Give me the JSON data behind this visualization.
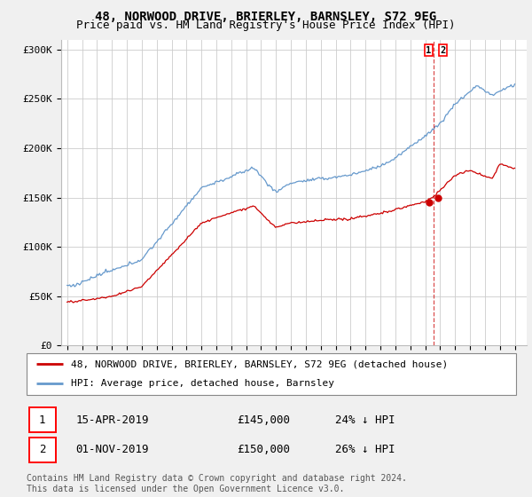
{
  "title": "48, NORWOOD DRIVE, BRIERLEY, BARNSLEY, S72 9EG",
  "subtitle": "Price paid vs. HM Land Registry's House Price Index (HPI)",
  "ylim": [
    0,
    310000
  ],
  "yticks": [
    0,
    50000,
    100000,
    150000,
    200000,
    250000,
    300000
  ],
  "ytick_labels": [
    "£0",
    "£50K",
    "£100K",
    "£150K",
    "£200K",
    "£250K",
    "£300K"
  ],
  "x_start_year": 1995,
  "x_end_year": 2025,
  "hpi_color": "#6699cc",
  "price_color": "#cc0000",
  "marker1_year": 2019.29,
  "marker1_price": 145000,
  "marker2_year": 2019.83,
  "marker2_price": 150000,
  "legend_label1": "48, NORWOOD DRIVE, BRIERLEY, BARNSLEY, S72 9EG (detached house)",
  "legend_label2": "HPI: Average price, detached house, Barnsley",
  "table_row1": [
    "1",
    "15-APR-2019",
    "£145,000",
    "24% ↓ HPI"
  ],
  "table_row2": [
    "2",
    "01-NOV-2019",
    "£150,000",
    "26% ↓ HPI"
  ],
  "footnote": "Contains HM Land Registry data © Crown copyright and database right 2024.\nThis data is licensed under the Open Government Licence v3.0.",
  "background_color": "#f0f0f0",
  "plot_bg_color": "#ffffff",
  "grid_color": "#cccccc",
  "title_fontsize": 10,
  "subtitle_fontsize": 9,
  "tick_fontsize": 8,
  "legend_fontsize": 8,
  "table_fontsize": 9,
  "footnote_fontsize": 7
}
